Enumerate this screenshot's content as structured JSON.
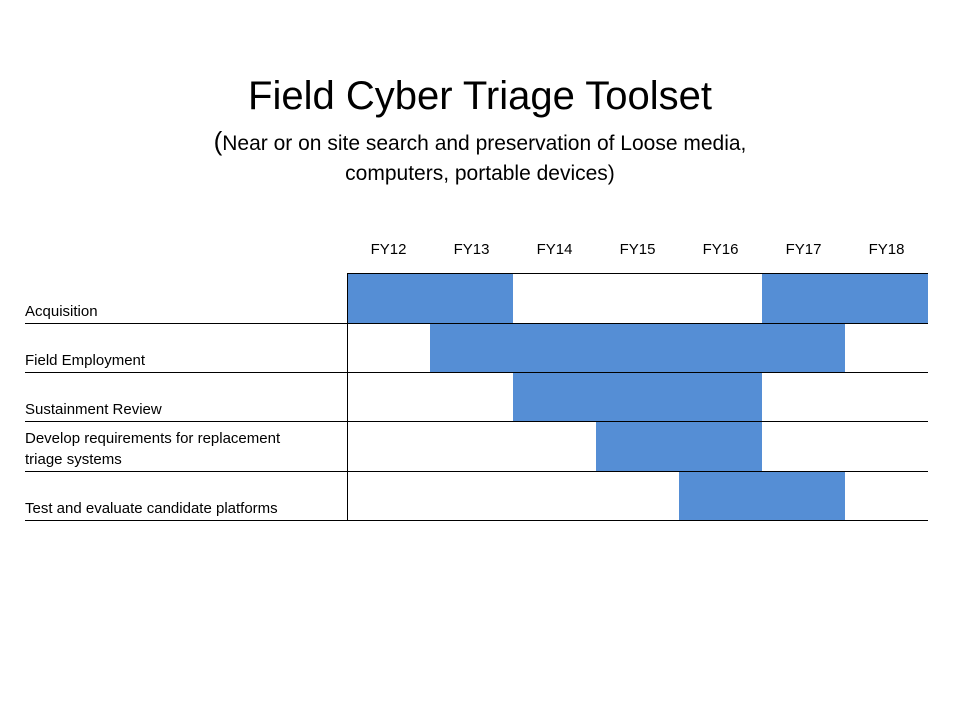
{
  "title": "Field Cyber Triage Toolset",
  "subtitle": {
    "open_paren": "(",
    "line1": "Near or on site search and preservation of Loose media,",
    "line2": "computers, portable devices)"
  },
  "years": [
    "FY12",
    "FY13",
    "FY14",
    "FY15",
    "FY16",
    "FY17",
    "FY18"
  ],
  "rows": [
    {
      "label_lines": [
        "Acquisition"
      ],
      "bars": [
        [
          0,
          2
        ],
        [
          5,
          7
        ]
      ]
    },
    {
      "label_lines": [
        "Field Employment"
      ],
      "bars": [
        [
          1,
          6
        ]
      ]
    },
    {
      "label_lines": [
        "Sustainment Review"
      ],
      "bars": [
        [
          2,
          5
        ]
      ]
    },
    {
      "label_lines": [
        "Develop requirements for replacement",
        "triage systems"
      ],
      "bars": [
        [
          3,
          5
        ]
      ]
    },
    {
      "label_lines": [
        "Test and evaluate candidate platforms"
      ],
      "bars": [
        [
          4,
          6
        ]
      ]
    }
  ],
  "colors": {
    "bar": "#558ed5",
    "grid": "#000000"
  }
}
